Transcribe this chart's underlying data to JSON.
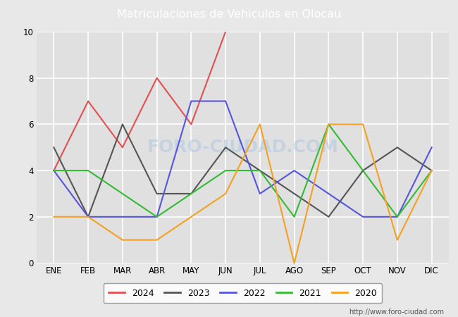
{
  "title": "Matriculaciones de Vehiculos en Olocau",
  "title_bg_color": "#4f8fcc",
  "title_text_color": "white",
  "months": [
    "ENE",
    "FEB",
    "MAR",
    "ABR",
    "MAY",
    "JUN",
    "JUL",
    "AGO",
    "SEP",
    "OCT",
    "NOV",
    "DIC"
  ],
  "series": {
    "2024": {
      "color": "#e05050",
      "values": [
        4,
        7,
        5,
        8,
        6,
        10,
        null,
        null,
        null,
        null,
        null,
        null
      ]
    },
    "2023": {
      "color": "#555555",
      "values": [
        5,
        2,
        6,
        3,
        3,
        5,
        4,
        3,
        2,
        4,
        5,
        4
      ]
    },
    "2022": {
      "color": "#5555dd",
      "values": [
        4,
        2,
        2,
        2,
        7,
        7,
        3,
        4,
        3,
        2,
        2,
        5
      ]
    },
    "2021": {
      "color": "#33bb33",
      "values": [
        4,
        4,
        3,
        2,
        3,
        4,
        4,
        2,
        6,
        4,
        2,
        4
      ]
    },
    "2020": {
      "color": "#f5a020",
      "values": [
        2,
        2,
        1,
        1,
        2,
        3,
        6,
        0,
        6,
        6,
        1,
        4
      ]
    }
  },
  "ylim": [
    0,
    10
  ],
  "yticks": [
    0,
    2,
    4,
    6,
    8,
    10
  ],
  "bg_color": "#e8e8e8",
  "plot_bg_color": "#e0e0e0",
  "grid_color": "white",
  "watermark": "FORO-CIUDAD.COM",
  "url": "http://www.foro-ciudad.com",
  "legend_order": [
    "2024",
    "2023",
    "2022",
    "2021",
    "2020"
  ]
}
